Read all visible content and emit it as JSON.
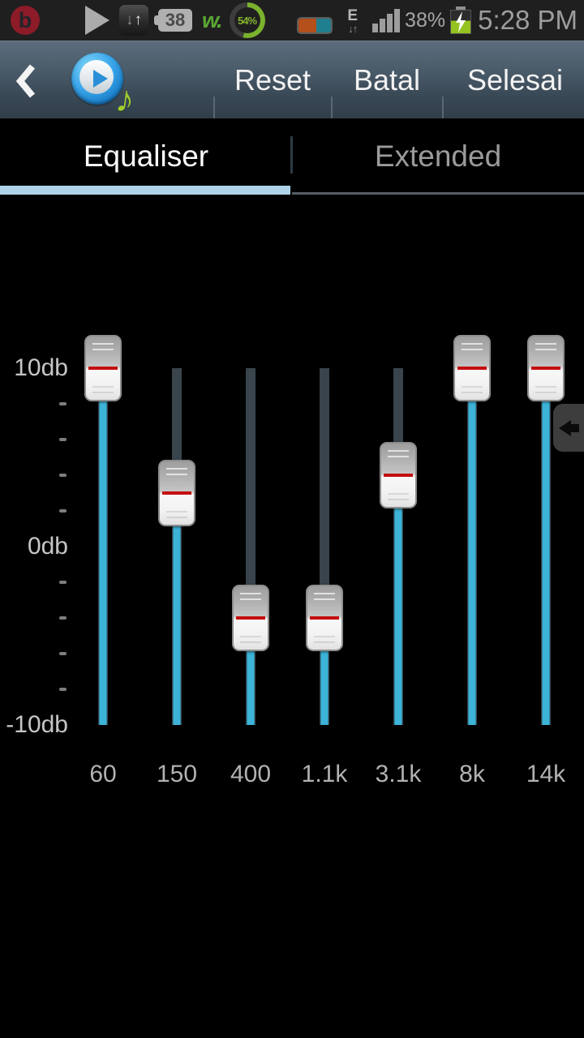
{
  "status_bar": {
    "time": "5:28 PM",
    "battery_percent": "38%",
    "notification_badge": "38",
    "walkman_label": "w.",
    "battery_widget_percent": "54%",
    "network_type": "E"
  },
  "icons": {
    "beats_letter": "b",
    "down_arrow": "↓",
    "up_arrow": "↑",
    "music_note": "♪"
  },
  "action_bar": {
    "buttons": [
      {
        "label": "Reset"
      },
      {
        "label": "Batal"
      },
      {
        "label": "Selesai"
      }
    ]
  },
  "tabs": [
    {
      "label": "Equaliser",
      "selected": true
    },
    {
      "label": "Extended",
      "selected": false
    }
  ],
  "equalizer": {
    "unit": "db",
    "axis": {
      "max": 10,
      "min": -10,
      "max_label": "10db",
      "mid_label": "0db",
      "min_label": "-10db"
    },
    "bands": [
      {
        "freq": "60",
        "db": 10
      },
      {
        "freq": "150",
        "db": 3
      },
      {
        "freq": "400",
        "db": -4
      },
      {
        "freq": "1.1k",
        "db": -4
      },
      {
        "freq": "3.1k",
        "db": 4
      },
      {
        "freq": "8k",
        "db": 10
      },
      {
        "freq": "14k",
        "db": 10
      }
    ]
  },
  "colors": {
    "accent_cyan": "#3db3d8",
    "tab_underline": "#aed3e9",
    "thumb_value_red": "#c40f0f",
    "track_dark": "#39444c",
    "charging_green": "#95c21f",
    "walkman_green": "#5ba832"
  }
}
